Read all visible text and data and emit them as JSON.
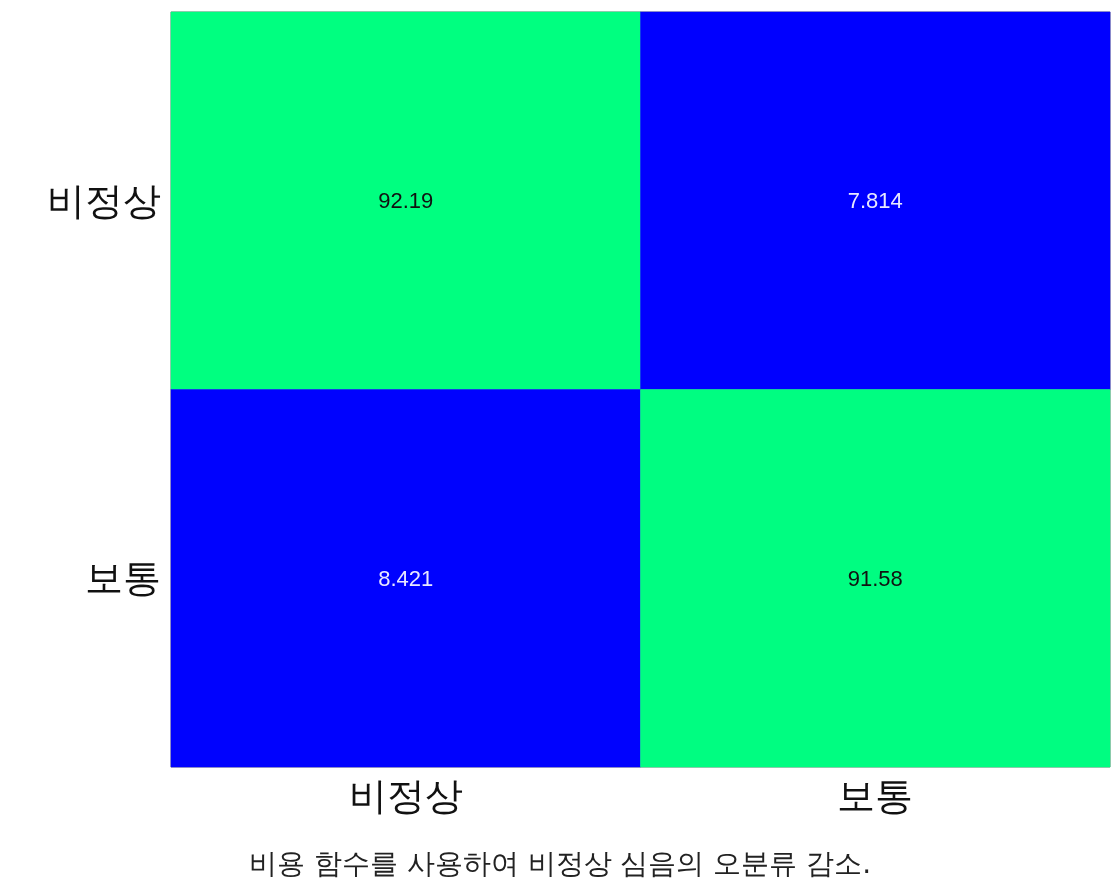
{
  "chart_data": {
    "type": "heatmap",
    "categories": [
      "비정상",
      "보통"
    ],
    "y_categories": [
      "비정상",
      "보통"
    ],
    "cells": [
      [
        92.19,
        7.814
      ],
      [
        8.421,
        91.58
      ]
    ],
    "colors": [
      "#0000ff",
      "#00ff80"
    ],
    "data_labels": true,
    "annotations": [
      "비용 함수를 사용하여 비정상 심음의 오분류 감소."
    ]
  }
}
